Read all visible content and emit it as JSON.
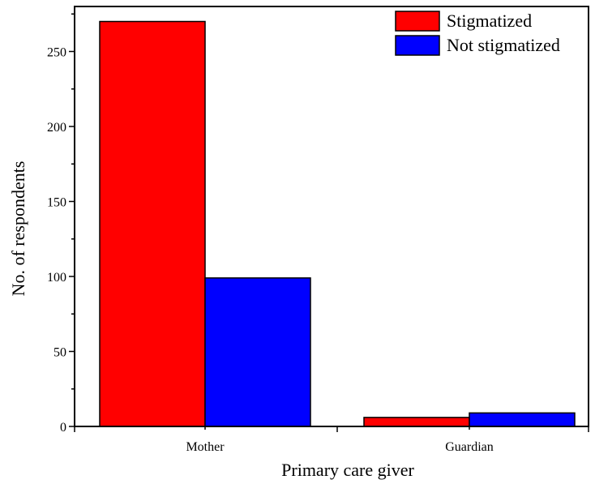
{
  "chart_data": {
    "type": "bar",
    "categories": [
      "Mother",
      "Guardian"
    ],
    "series": [
      {
        "name": "Stigmatized",
        "values": [
          270,
          6
        ],
        "color": "#ff0000"
      },
      {
        "name": "Not stigmatized",
        "values": [
          99,
          9
        ],
        "color": "#0000ff"
      }
    ],
    "title": "",
    "xlabel": "Primary care giver",
    "ylabel": "No. of respondents",
    "ylim": [
      0,
      280
    ],
    "yticks": [
      0,
      50,
      100,
      150,
      200,
      250
    ],
    "grid": false,
    "legend_position": "top-right"
  }
}
